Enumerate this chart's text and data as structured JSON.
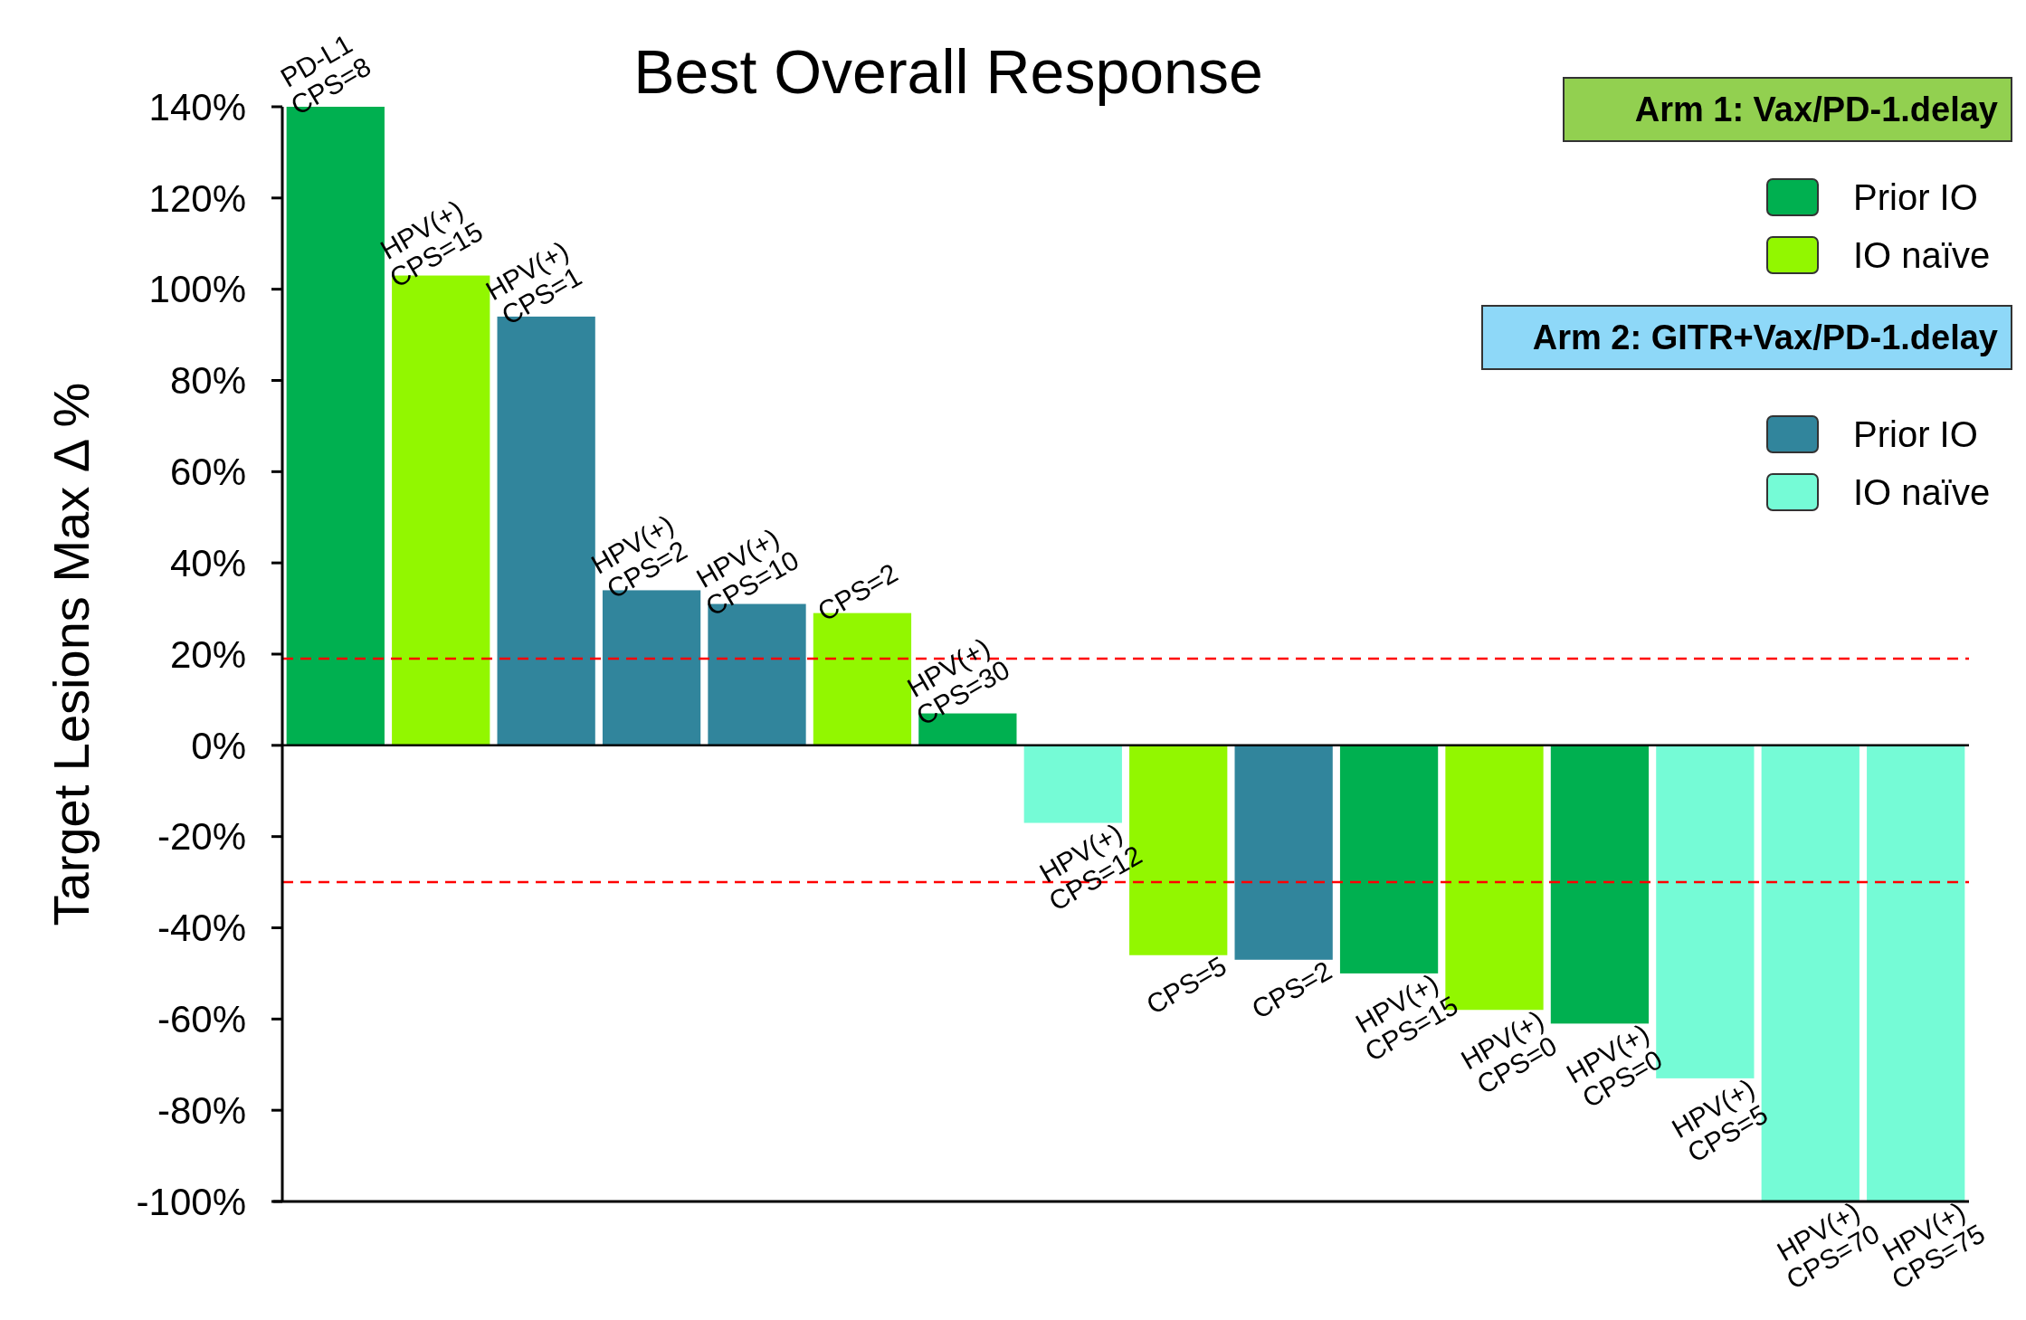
{
  "chart_data": {
    "type": "bar",
    "title": "Best Overall Response",
    "ylabel": "Target Lesions Max Δ %",
    "categories": [
      null,
      null,
      null,
      null,
      null,
      null,
      null,
      null,
      null,
      null,
      null,
      null,
      null,
      null,
      null,
      null
    ],
    "series": [
      {
        "name": "Prior IO",
        "color": "#00b050",
        "values": [
          140,
          null,
          null,
          null,
          null,
          null,
          7,
          null,
          null,
          null,
          -50,
          null,
          -61,
          null,
          null,
          null
        ]
      },
      {
        "name": "IO naïve",
        "color": "#92f700",
        "values": [
          null,
          103,
          null,
          null,
          null,
          29,
          null,
          null,
          -46,
          null,
          null,
          -58,
          null,
          null,
          null,
          null
        ]
      },
      {
        "name": "Prior IO",
        "color": "#31859c",
        "values": [
          null,
          null,
          94,
          34,
          31,
          null,
          null,
          null,
          null,
          -47,
          null,
          null,
          null,
          null,
          null,
          null
        ]
      },
      {
        "name": "IO naïve",
        "color": "#75fbd6",
        "values": [
          null,
          null,
          null,
          null,
          null,
          null,
          null,
          -17,
          null,
          null,
          null,
          null,
          null,
          -73,
          -100,
          -100
        ]
      }
    ],
    "ylim": [
      -100,
      140
    ],
    "yticks": [
      {
        "value": -100,
        "label": "-100%"
      },
      {
        "value": -80,
        "label": "-80%"
      },
      {
        "value": -60,
        "label": "-60%"
      },
      {
        "value": -40,
        "label": "-40%"
      },
      {
        "value": -20,
        "label": "-20%"
      },
      {
        "value": 0,
        "label": "0%"
      },
      {
        "value": 20,
        "label": "20%"
      },
      {
        "value": 40,
        "label": "40%"
      },
      {
        "value": 60,
        "label": "60%"
      },
      {
        "value": 80,
        "label": "80%"
      },
      {
        "value": 100,
        "label": "100%"
      },
      {
        "value": 120,
        "label": "120%"
      },
      {
        "value": 140,
        "label": "140%"
      }
    ],
    "ref_lines": [
      {
        "axis": "y",
        "value": 19,
        "color": "#ff0000",
        "line_style": "dashed"
      },
      {
        "axis": "y",
        "value": -30,
        "color": "#ff0000",
        "line_style": "dashed"
      }
    ],
    "legend": "top right",
    "annotations": [
      "Arm 1: Vax/PD-1.delay",
      "Arm 2: GITR+Vax/PD-1.delay",
      {
        "text": "PD-L1\nCPS=8",
        "y": 140
      },
      {
        "text": "HPV(+)\nCPS=15",
        "y": 103
      },
      {
        "text": "HPV(+)\nCPS=1",
        "y": 94
      },
      {
        "text": "HPV(+)\nCPS=2",
        "y": 34
      },
      {
        "text": "HPV(+)\nCPS=10",
        "y": 31
      },
      {
        "text": "CPS=2",
        "y": 29
      },
      {
        "text": "HPV(+)\nCPS=30",
        "y": 7
      },
      {
        "text": "HPV(+)\nCPS=12",
        "y": -17
      },
      {
        "text": "CPS=5",
        "y": -46
      },
      {
        "text": "CPS=2",
        "y": -47
      },
      {
        "text": "HPV(+)\nCPS=15",
        "y": -50
      },
      {
        "text": "HPV(+)\nCPS=0",
        "y": -58
      },
      {
        "text": "HPV(+)\nCPS=0",
        "y": -61
      },
      {
        "text": "HPV(+)\nCPS=5",
        "y": -73
      },
      {
        "text": "HPV(+)\nCPS=70",
        "y": -100
      },
      {
        "text": "HPV(+)\nCPS=75",
        "y": -100
      }
    ]
  }
}
